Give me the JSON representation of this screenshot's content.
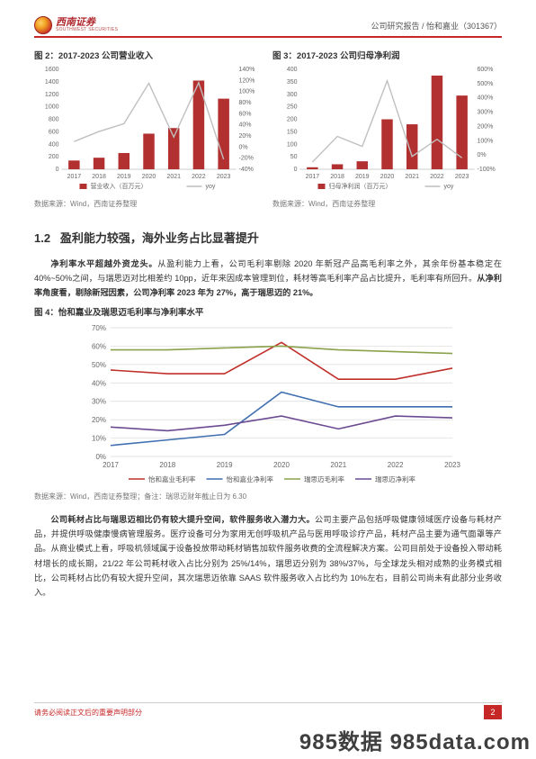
{
  "header": {
    "logo_cn": "西南证券",
    "logo_en": "SOUTHWEST SECURITIES",
    "right_text": "公司研究报告 / 怡和嘉业（301367）"
  },
  "fig2": {
    "title": "图 2：2017-2023 公司营业收入",
    "source": "数据来源：Wind，西南证券整理",
    "type": "bar+line",
    "categories": [
      "2017",
      "2018",
      "2019",
      "2020",
      "2021",
      "2022",
      "2023"
    ],
    "bar_values": [
      140,
      185,
      260,
      570,
      660,
      1420,
      1130
    ],
    "bar_color": "#b23030",
    "line_values": [
      10,
      28,
      42,
      115,
      18,
      116,
      -22
    ],
    "line_color": "#bfbfbf",
    "yleft": {
      "min": 0,
      "max": 1600,
      "step": 200,
      "label_fontsize": 7
    },
    "yright": {
      "min": -40,
      "max": 140,
      "step": 20,
      "suffix": "%",
      "label_fontsize": 7
    },
    "legend_bar": "营业收入（百万元）",
    "legend_line": "yoy",
    "bg": "#ffffff",
    "grid_color": "#ffffff"
  },
  "fig3": {
    "title": "图 3：2017-2023 公司归母净利润",
    "source": "数据来源：Wind，西南证券整理",
    "type": "bar+line",
    "categories": [
      "2017",
      "2018",
      "2019",
      "2020",
      "2021",
      "2022",
      "2023"
    ],
    "bar_values": [
      8,
      20,
      32,
      200,
      180,
      375,
      295
    ],
    "bar_color": "#b23030",
    "line_values": [
      -50,
      130,
      60,
      520,
      -10,
      110,
      -20
    ],
    "line_color": "#bfbfbf",
    "yleft": {
      "min": 0,
      "max": 400,
      "step": 50,
      "label_fontsize": 7
    },
    "yright": {
      "min": -100,
      "max": 600,
      "step": 100,
      "suffix": "%",
      "label_fontsize": 7
    },
    "legend_bar": "归母净利润（百万元）",
    "legend_line": "yoy",
    "bg": "#ffffff"
  },
  "section": {
    "num": "1.2",
    "title": "盈利能力较强，海外业务占比显著提升"
  },
  "para1_parts": {
    "b1": "净利率水平超越外资龙头。",
    "t1": "从盈利能力上看，公司毛利率剔除 2020 年新冠产品高毛利率之外，其余年份基本稳定在 40%~50%之间，与瑞思迈对比相差约 10pp，近年来因成本管理到位，耗材等高毛利率产品占比提升，毛利率有所回升。",
    "b2": "从净利率角度看，剔除新冠因素，公司净利率 2023 年为 27%，高于瑞思迈的 21%。"
  },
  "fig4": {
    "title": "图 4：怡和嘉业及瑞思迈毛利率与净利率水平",
    "source": "数据来源：Wind，西南证券整理；备注：瑞思迈财年截止日为 6.30",
    "type": "line",
    "categories": [
      "2017",
      "2018",
      "2019",
      "2020",
      "2021",
      "2022",
      "2023"
    ],
    "yaxis": {
      "min": 0,
      "max": 70,
      "step": 10,
      "suffix": "%",
      "label_fontsize": 8,
      "grid_color": "#d9d9d9"
    },
    "series": [
      {
        "name": "怡和嘉业毛利率",
        "color": "#c0302b",
        "values": [
          47,
          45,
          45,
          62,
          42,
          42,
          48
        ],
        "width": 1.6
      },
      {
        "name": "怡和嘉业净利率",
        "color": "#3f6fb0",
        "values": [
          6,
          9,
          12,
          35,
          27,
          27,
          27
        ],
        "width": 1.6
      },
      {
        "name": "瑞思迈毛利率",
        "color": "#8aa24a",
        "values": [
          58,
          58,
          59,
          60,
          58,
          57,
          56
        ],
        "width": 1.6
      },
      {
        "name": "瑞思迈净利率",
        "color": "#6b4a92",
        "values": [
          16,
          14,
          17,
          22,
          15,
          22,
          21
        ],
        "width": 1.6
      }
    ],
    "bg": "#ffffff"
  },
  "para2_parts": {
    "b1": "公司耗材占比与瑞思迈相比仍有较大提升空间，软件服务收入潜力大。",
    "t1": "公司主要产品包括呼吸健康领域医疗设备与耗材产品，并提供呼吸健康慢病管理服务。医疗设备可分为家用无创呼吸机产品与医用呼吸诊疗产品，耗材产品主要为通气面罩等产品。从商业模式上看，呼吸机领域属于设备投放带动耗材销售加软件服务收费的全流程解决方案。公司目前处于设备投入带动耗材增长的成长期，21/22 年公司耗材收入占比分别为 25%/14%，瑞思迈分别为 38%/37%，与全球龙头相对成熟的业务模式相比，公司耗材占比仍有较大提升空间，其次瑞思迈依靠 SAAS 软件服务收入占比约为 10%左右，目前公司尚未有此部分业务收入。"
  },
  "footer": {
    "left": "请务必阅读正文后的重要声明部分",
    "page": "2"
  },
  "watermark": "985数据 985data.com"
}
